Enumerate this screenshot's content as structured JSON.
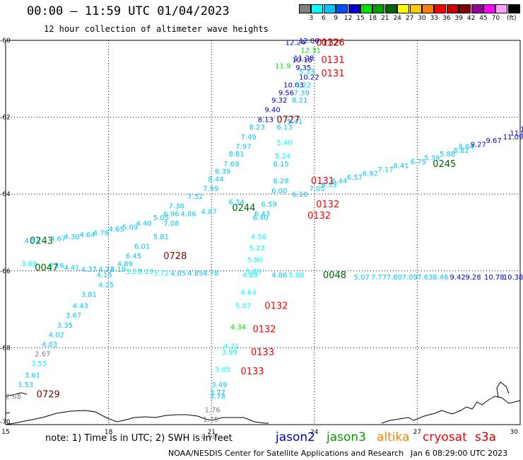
{
  "header": {
    "title": "00:00 – 11:59 UTC 01/04/2023",
    "subtitle": "12 hour collection of altimeter wave heights"
  },
  "color_scale": {
    "unit": "(ft)",
    "bins": [
      {
        "label": "",
        "color": "#808080"
      },
      {
        "label": "3",
        "color": "#00ffff"
      },
      {
        "label": "6",
        "color": "#00c8ff"
      },
      {
        "label": "9",
        "color": "#0050ff"
      },
      {
        "label": "12",
        "color": "#0000c8"
      },
      {
        "label": "15",
        "color": "#00e100"
      },
      {
        "label": "18",
        "color": "#00a000"
      },
      {
        "label": "21",
        "color": "#006400"
      },
      {
        "label": "24",
        "color": "#ffff00"
      },
      {
        "label": "27",
        "color": "#ffc800"
      },
      {
        "label": "30",
        "color": "#ff8000"
      },
      {
        "label": "33",
        "color": "#ff0000"
      },
      {
        "label": "36",
        "color": "#c80000"
      },
      {
        "label": "39",
        "color": "#800000"
      },
      {
        "label": "42",
        "color": "#960096"
      },
      {
        "label": "45",
        "color": "#ff00ff"
      },
      {
        "label": "70",
        "color": "#ffa0ff"
      },
      {
        "label": "",
        "color": "#000000"
      }
    ]
  },
  "axes": {
    "lon_min": 15,
    "lon_max": 30,
    "lat_min": -70,
    "lat_max": -60,
    "lon_labels": [
      "15",
      "18",
      "21",
      "24",
      "27",
      "30"
    ],
    "lat_labels": [
      "-60",
      "-62",
      "-64",
      "-66",
      "-68",
      "-70"
    ],
    "grid": "dotted"
  },
  "track_times": [
    {
      "text": "0126",
      "color": "#c80000",
      "lon": 24.2,
      "lat": -60.05
    },
    {
      "text": "0132",
      "color": "#c80000",
      "lon": 24.05,
      "lat": -60.05
    },
    {
      "text": "0131",
      "color": "#ff0000",
      "lon": 24.2,
      "lat": -60.5
    },
    {
      "text": "0131",
      "color": "#ff0000",
      "lon": 24.2,
      "lat": -60.85
    },
    {
      "text": "0727",
      "color": "#800000",
      "lon": 22.9,
      "lat": -62.05
    },
    {
      "text": "0131",
      "color": "#ff0000",
      "lon": 23.9,
      "lat": -63.65
    },
    {
      "text": "0132",
      "color": "#ff0000",
      "lon": 24.05,
      "lat": -64.25
    },
    {
      "text": "0132",
      "color": "#ff0000",
      "lon": 23.8,
      "lat": -64.55
    },
    {
      "text": "0244",
      "color": "#006400",
      "lon": 21.6,
      "lat": -64.35
    },
    {
      "text": "0245",
      "color": "#006400",
      "lon": 27.45,
      "lat": -63.2
    },
    {
      "text": "0243",
      "color": "#006400",
      "lon": 15.7,
      "lat": -65.2
    },
    {
      "text": "0728",
      "color": "#800000",
      "lon": 19.6,
      "lat": -65.6
    },
    {
      "text": "0047",
      "color": "#006400",
      "lon": 15.85,
      "lat": -65.9
    },
    {
      "text": "0048",
      "color": "#006400",
      "lon": 24.25,
      "lat": -66.1
    },
    {
      "text": "0132",
      "color": "#ff0000",
      "lon": 22.55,
      "lat": -66.9
    },
    {
      "text": "0132",
      "color": "#ff0000",
      "lon": 22.2,
      "lat": -67.5
    },
    {
      "text": "0133",
      "color": "#ff0000",
      "lon": 22.15,
      "lat": -68.1
    },
    {
      "text": "0133",
      "color": "#ff0000",
      "lon": 21.85,
      "lat": -68.6
    },
    {
      "text": "0729",
      "color": "#800000",
      "lon": 15.9,
      "lat": -69.2
    }
  ],
  "swh_labels": [
    {
      "text": "12.24",
      "color": "#0000c8",
      "lon": 23.15,
      "lat": -60.05
    },
    {
      "text": "12.00",
      "color": "#0000c8",
      "lon": 23.55,
      "lat": -60.0
    },
    {
      "text": "12.31",
      "color": "#00e100",
      "lon": 23.6,
      "lat": -60.25
    },
    {
      "text": "11.28",
      "color": "#0000c8",
      "lon": 23.4,
      "lat": -60.45
    },
    {
      "text": "10.16",
      "color": "#0000c8",
      "lon": 23.35,
      "lat": -60.5
    },
    {
      "text": "11.9",
      "color": "#00e100",
      "lon": 22.85,
      "lat": -60.65
    },
    {
      "text": "9.35",
      "color": "#0000c8",
      "lon": 23.45,
      "lat": -60.7
    },
    {
      "text": "5.33",
      "color": "#00c8ff",
      "lon": 23.55,
      "lat": -60.8
    },
    {
      "text": "10.22",
      "color": "#0000c8",
      "lon": 23.55,
      "lat": -60.95
    },
    {
      "text": "10.03",
      "color": "#0000c8",
      "lon": 23.1,
      "lat": -61.15
    },
    {
      "text": "5.22",
      "color": "#00c8ff",
      "lon": 23.45,
      "lat": -61.15
    },
    {
      "text": "9.56",
      "color": "#0000c8",
      "lon": 22.95,
      "lat": -61.35
    },
    {
      "text": "7.39",
      "color": "#00c8ff",
      "lon": 23.4,
      "lat": -61.35
    },
    {
      "text": "9.32",
      "color": "#0000c8",
      "lon": 22.75,
      "lat": -61.55
    },
    {
      "text": "8.21",
      "color": "#00c8ff",
      "lon": 23.35,
      "lat": -61.55
    },
    {
      "text": "9.40",
      "color": "#0000c8",
      "lon": 22.55,
      "lat": -61.8
    },
    {
      "text": "8.13",
      "color": "#0000c8",
      "lon": 22.35,
      "lat": -62.05
    },
    {
      "text": "5.41",
      "color": "#00c8ff",
      "lon": 23.2,
      "lat": -62.1
    },
    {
      "text": "8.23",
      "color": "#00c8ff",
      "lon": 22.1,
      "lat": -62.25
    },
    {
      "text": "6.13",
      "color": "#00c8ff",
      "lon": 22.9,
      "lat": -62.25
    },
    {
      "text": "7.49",
      "color": "#00c8ff",
      "lon": 21.85,
      "lat": -62.5
    },
    {
      "text": "7.97",
      "color": "#00c8ff",
      "lon": 21.7,
      "lat": -62.75
    },
    {
      "text": "5.40",
      "color": "#00ffff",
      "lon": 22.9,
      "lat": -62.65
    },
    {
      "text": "8.81",
      "color": "#00c8ff",
      "lon": 21.5,
      "lat": -62.95
    },
    {
      "text": "7.69",
      "color": "#00c8ff",
      "lon": 21.35,
      "lat": -63.2
    },
    {
      "text": "5.24",
      "color": "#00ffff",
      "lon": 22.85,
      "lat": -63.0
    },
    {
      "text": "6.15",
      "color": "#00c8ff",
      "lon": 22.8,
      "lat": -63.2
    },
    {
      "text": "8.39",
      "color": "#00c8ff",
      "lon": 21.1,
      "lat": -63.4
    },
    {
      "text": "8.44",
      "color": "#00c8ff",
      "lon": 20.9,
      "lat": -63.6
    },
    {
      "text": "6.28",
      "color": "#00c8ff",
      "lon": 22.8,
      "lat": -63.65
    },
    {
      "text": "7.99",
      "color": "#00c8ff",
      "lon": 20.75,
      "lat": -63.85
    },
    {
      "text": "6.00",
      "color": "#00c8ff",
      "lon": 22.75,
      "lat": -63.9
    },
    {
      "text": "6.10",
      "color": "#00c8ff",
      "lon": 23.35,
      "lat": -64.0
    },
    {
      "text": "7.05",
      "color": "#00c8ff",
      "lon": 23.85,
      "lat": -63.85
    },
    {
      "text": "6.53",
      "color": "#00c8ff",
      "lon": 24.2,
      "lat": -63.75
    },
    {
      "text": "6.44",
      "color": "#00c8ff",
      "lon": 24.5,
      "lat": -63.65
    },
    {
      "text": "6.57",
      "color": "#00c8ff",
      "lon": 24.95,
      "lat": -63.55
    },
    {
      "text": "6.92",
      "color": "#00c8ff",
      "lon": 25.4,
      "lat": -63.45
    },
    {
      "text": "7.17",
      "color": "#00c8ff",
      "lon": 25.85,
      "lat": -63.35
    },
    {
      "text": "8.41",
      "color": "#00c8ff",
      "lon": 26.3,
      "lat": -63.25
    },
    {
      "text": "6.75",
      "color": "#00c8ff",
      "lon": 26.8,
      "lat": -63.15
    },
    {
      "text": "5.39",
      "color": "#00c8ff",
      "lon": 27.2,
      "lat": -63.05
    },
    {
      "text": "5.88",
      "color": "#00c8ff",
      "lon": 27.65,
      "lat": -62.95
    },
    {
      "text": "8.82",
      "color": "#00c8ff",
      "lon": 28.05,
      "lat": -62.85
    },
    {
      "text": "8.84",
      "color": "#00c8ff",
      "lon": 28.2,
      "lat": -62.75
    },
    {
      "text": "9.27",
      "color": "#0000c8",
      "lon": 28.55,
      "lat": -62.7
    },
    {
      "text": "9.67",
      "color": "#0000c8",
      "lon": 29.0,
      "lat": -62.6
    },
    {
      "text": "11.09",
      "color": "#0000c8",
      "lon": 29.5,
      "lat": -62.5
    },
    {
      "text": "11.0",
      "color": "#0000c8",
      "lon": 29.7,
      "lat": -62.4
    },
    {
      "text": "11",
      "color": "#0000c8",
      "lon": 30.0,
      "lat": -62.3
    },
    {
      "text": "7.52",
      "color": "#00c8ff",
      "lon": 20.3,
      "lat": -64.05
    },
    {
      "text": "7.38",
      "color": "#00c8ff",
      "lon": 19.75,
      "lat": -64.3
    },
    {
      "text": "6.34",
      "color": "#00c8ff",
      "lon": 21.5,
      "lat": -64.2
    },
    {
      "text": "6.59",
      "color": "#00c8ff",
      "lon": 22.45,
      "lat": -64.25
    },
    {
      "text": "6.43",
      "color": "#00c8ff",
      "lon": 22.25,
      "lat": -64.5
    },
    {
      "text": "6.40",
      "color": "#00c8ff",
      "lon": 22.2,
      "lat": -64.6
    },
    {
      "text": "6.96",
      "color": "#00c8ff",
      "lon": 19.6,
      "lat": -64.5
    },
    {
      "text": "4.06",
      "color": "#00c8ff",
      "lon": 20.1,
      "lat": -64.5
    },
    {
      "text": "4.87",
      "color": "#00c8ff",
      "lon": 20.7,
      "lat": -64.45
    },
    {
      "text": "5.05",
      "color": "#00c8ff",
      "lon": 19.3,
      "lat": -64.6
    },
    {
      "text": "7.08",
      "color": "#00c8ff",
      "lon": 19.6,
      "lat": -64.75
    },
    {
      "text": "4.40",
      "color": "#00c8ff",
      "lon": 18.8,
      "lat": -64.75
    },
    {
      "text": "5.09",
      "color": "#00c8ff",
      "lon": 18.4,
      "lat": -64.85
    },
    {
      "text": "4.65",
      "color": "#00c8ff",
      "lon": 18.0,
      "lat": -64.9
    },
    {
      "text": "4.78",
      "color": "#00c8ff",
      "lon": 17.55,
      "lat": -65.0
    },
    {
      "text": "4.64",
      "color": "#00c8ff",
      "lon": 17.15,
      "lat": -65.05
    },
    {
      "text": "4.30",
      "color": "#00c8ff",
      "lon": 16.7,
      "lat": -65.1
    },
    {
      "text": "4.67",
      "color": "#00c8ff",
      "lon": 16.3,
      "lat": -65.15
    },
    {
      "text": "4.53",
      "color": "#00c8ff",
      "lon": 15.55,
      "lat": -65.2
    },
    {
      "text": "5.81",
      "color": "#00c8ff",
      "lon": 19.3,
      "lat": -65.1
    },
    {
      "text": "6.01",
      "color": "#00c8ff",
      "lon": 18.75,
      "lat": -65.35
    },
    {
      "text": "6.45",
      "color": "#00c8ff",
      "lon": 18.5,
      "lat": -65.6
    },
    {
      "text": "4.56",
      "color": "#00ffff",
      "lon": 22.15,
      "lat": -65.1
    },
    {
      "text": "5.23",
      "color": "#00ffff",
      "lon": 22.1,
      "lat": -65.4
    },
    {
      "text": "5.80",
      "color": "#00ffff",
      "lon": 22.05,
      "lat": -65.7
    },
    {
      "text": "4.89",
      "color": "#00c8ff",
      "lon": 18.25,
      "lat": -65.8
    },
    {
      "text": "4.19",
      "color": "#00c8ff",
      "lon": 18.05,
      "lat": -65.95
    },
    {
      "text": "3.27",
      "color": "#00ffff",
      "lon": 18.5,
      "lat": -66.0
    },
    {
      "text": "4.15",
      "color": "#00c8ff",
      "lon": 17.65,
      "lat": -66.1
    },
    {
      "text": "4.21",
      "color": "#00c8ff",
      "lon": 17.7,
      "lat": -65.95
    },
    {
      "text": "4.37",
      "color": "#00c8ff",
      "lon": 17.2,
      "lat": -65.95
    },
    {
      "text": "4.41",
      "color": "#00c8ff",
      "lon": 16.7,
      "lat": -65.9
    },
    {
      "text": "4.16",
      "color": "#00c8ff",
      "lon": 16.25,
      "lat": -65.85
    },
    {
      "text": "3.89",
      "color": "#00ffff",
      "lon": 15.45,
      "lat": -65.8
    },
    {
      "text": "3.23",
      "color": "#00ffff",
      "lon": 18.85,
      "lat": -66.0
    },
    {
      "text": "3.72",
      "color": "#00ffff",
      "lon": 19.3,
      "lat": -66.05
    },
    {
      "text": "4.05",
      "color": "#00c8ff",
      "lon": 19.8,
      "lat": -66.05
    },
    {
      "text": "4.85",
      "color": "#00c8ff",
      "lon": 20.3,
      "lat": -66.05
    },
    {
      "text": "4.78",
      "color": "#00c8ff",
      "lon": 20.75,
      "lat": -66.05
    },
    {
      "text": "5.89",
      "color": "#00ffff",
      "lon": 22.0,
      "lat": -66.0
    },
    {
      "text": "4.89",
      "color": "#00ffff",
      "lon": 21.9,
      "lat": -66.1
    },
    {
      "text": "4.86",
      "color": "#00c8ff",
      "lon": 22.75,
      "lat": -66.1
    },
    {
      "text": "5.88",
      "color": "#00ffff",
      "lon": 23.25,
      "lat": -66.1
    },
    {
      "text": "5.07",
      "color": "#00c8ff",
      "lon": 25.15,
      "lat": -66.15
    },
    {
      "text": "7.77",
      "color": "#00c8ff",
      "lon": 25.65,
      "lat": -66.15
    },
    {
      "text": "7.80",
      "color": "#00c8ff",
      "lon": 26.1,
      "lat": -66.15
    },
    {
      "text": "7.09",
      "color": "#00c8ff",
      "lon": 26.55,
      "lat": -66.15
    },
    {
      "text": "7.63",
      "color": "#00c8ff",
      "lon": 27.0,
      "lat": -66.15
    },
    {
      "text": "8.46",
      "color": "#00c8ff",
      "lon": 27.45,
      "lat": -66.15
    },
    {
      "text": "9.42",
      "color": "#0000c8",
      "lon": 27.95,
      "lat": -66.15
    },
    {
      "text": "9.28",
      "color": "#0000c8",
      "lon": 28.4,
      "lat": -66.15
    },
    {
      "text": "10.78",
      "color": "#0000c8",
      "lon": 28.95,
      "lat": -66.15
    },
    {
      "text": "10.38",
      "color": "#0000c8",
      "lon": 29.5,
      "lat": -66.15
    },
    {
      "text": "4.25",
      "color": "#00c8ff",
      "lon": 17.7,
      "lat": -66.35
    },
    {
      "text": "4.63",
      "color": "#00ffff",
      "lon": 21.85,
      "lat": -66.55
    },
    {
      "text": "3.81",
      "color": "#00c8ff",
      "lon": 17.2,
      "lat": -66.6
    },
    {
      "text": "5.07",
      "color": "#00ffff",
      "lon": 21.7,
      "lat": -66.9
    },
    {
      "text": "4.43",
      "color": "#00c8ff",
      "lon": 16.95,
      "lat": -66.9
    },
    {
      "text": "3.67",
      "color": "#00c8ff",
      "lon": 16.75,
      "lat": -67.15
    },
    {
      "text": "3.35",
      "color": "#00c8ff",
      "lon": 16.5,
      "lat": -67.4
    },
    {
      "text": "4.34",
      "color": "#00e100",
      "lon": 21.55,
      "lat": -67.45
    },
    {
      "text": "4.02",
      "color": "#00c8ff",
      "lon": 16.25,
      "lat": -67.65
    },
    {
      "text": "4.03",
      "color": "#00c8ff",
      "lon": 16.05,
      "lat": -67.9
    },
    {
      "text": "4.21",
      "color": "#00ffff",
      "lon": 21.35,
      "lat": -67.95
    },
    {
      "text": "3.99",
      "color": "#00ffff",
      "lon": 21.3,
      "lat": -68.1
    },
    {
      "text": "2.67",
      "color": "#808080",
      "lon": 15.85,
      "lat": -68.15
    },
    {
      "text": "3.55",
      "color": "#00ffff",
      "lon": 15.75,
      "lat": -68.4
    },
    {
      "text": "3.65",
      "color": "#00ffff",
      "lon": 21.1,
      "lat": -68.55
    },
    {
      "text": "3.61",
      "color": "#00c8ff",
      "lon": 15.55,
      "lat": -68.7
    },
    {
      "text": "3.49",
      "color": "#00c8ff",
      "lon": 21.0,
      "lat": -68.95
    },
    {
      "text": "3.53",
      "color": "#00c8ff",
      "lon": 15.35,
      "lat": -68.95
    },
    {
      "text": "3.77",
      "color": "#00c8ff",
      "lon": 20.95,
      "lat": -69.15
    },
    {
      "text": "3.78",
      "color": "#00c8ff",
      "lon": 20.95,
      "lat": -69.25
    },
    {
      "text": "2.68",
      "color": "#808080",
      "lon": 15.0,
      "lat": -69.25
    },
    {
      "text": "1.76",
      "color": "#808080",
      "lon": 20.8,
      "lat": -69.6
    },
    {
      "text": "1.45",
      "color": "#808080",
      "lon": 20.75,
      "lat": -69.85
    },
    {
      "text": "0.90",
      "color": "#808080",
      "lon": 20.7,
      "lat": -70.3
    }
  ],
  "footer": {
    "note": "note:  1) Time is in UTC; 2) SWH is in feet",
    "missions": [
      {
        "name": "jason2",
        "color": "#0000c8"
      },
      {
        "name": "jason3",
        "color": "#00a000"
      },
      {
        "name": "altika",
        "color": "#ff8000"
      },
      {
        "name": "cryosat",
        "color": "#ff0000"
      },
      {
        "name": "s3a",
        "color": "#c80000"
      }
    ],
    "credit": "NOAA/NESDIS Center for Satellite Applications and Research",
    "generated": "Jan  6 08:29:00 UTC 2023"
  }
}
